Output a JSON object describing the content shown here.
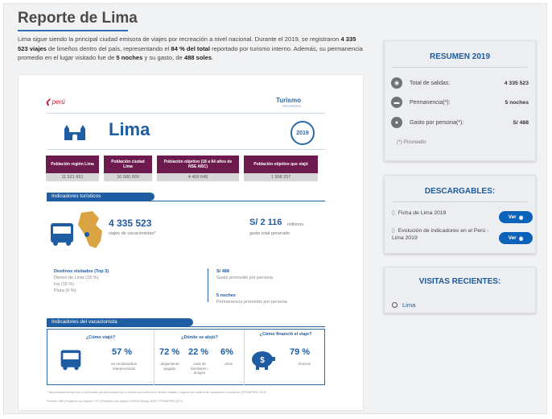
{
  "header": {
    "title": "Reporte de Lima"
  },
  "intro": {
    "p1": "Lima sigue siendo la principal ciudad emisora de viajes por recreación a nivel nacional.  Durante el 2019, se registraron ",
    "b1": "4 335 523 viajes",
    "p2": " de limeños dentro del país, representando el ",
    "b2": "84 % del total",
    "p3": " reportado por turismo interno. Además, su permanencia promedio en el lugar visitado fue de ",
    "b3": "5 noches",
    "p4": " y su gasto, de ",
    "b4": "488 soles",
    "p5": "."
  },
  "document": {
    "logo_peru": "perú",
    "logo_turismo": "Turismo",
    "logo_turismo_sub": "PROMPERÚ",
    "city": "Lima",
    "stamp": "2019",
    "population": [
      {
        "label": "Población región Lima",
        "value": "11 521 651"
      },
      {
        "label": "Población ciudad Lima",
        "value": "10 580 900"
      },
      {
        "label": "Población objetivo (18 a 64 años de NSE ABC)",
        "value": "4 400 649"
      },
      {
        "label": "Población objetivo que viajó",
        "value": "1 308 207"
      }
    ],
    "indicators_tab": "Indicadores turísticos",
    "trips_value": "4 335 523",
    "trips_label": "viajes de vacacionistas*",
    "spend_value": "S/ 2 116",
    "spend_unit": "millones",
    "spend_label": "gasto total generado",
    "top3_title": "Destinos visitados (Top 3)",
    "top3": [
      "Dentro de Lima (33 %)",
      "Ica (15 %)",
      "Piura (6 %)"
    ],
    "avg_spend_value": "S/ 488",
    "avg_spend_label": "Gasto promedio por persona",
    "nights_value": "5 noches",
    "nights_label": "Permanencia promedio por persona",
    "traveler_tab": "Indicadores del vacacionista",
    "how_title": "¿Cómo viajó?",
    "how_pct": "57 %",
    "how_label": "en ómnibus/bus interprovincial",
    "where_title": "¿Dónde se alojó?",
    "where_items": [
      {
        "pct": "72 %",
        "label": "alojamiento pagado"
      },
      {
        "pct": "22 %",
        "label": "casa de familiares / amigos"
      },
      {
        "pct": "6%",
        "label": "otros"
      }
    ],
    "fund_title": "¿Cómo financió el viaje?",
    "fund_pct": "79 %",
    "fund_label": "Ahorros",
    "footnote_1": "* Vacacionistas incluye solo a los turistas que pernoctaron por lo menos una noche en el destino visitado y viajaron por motivos de vacaciones o recreación (PROMPERÚ 2019)",
    "footnote_2": "Fuentes: INEI (Población por región) / CPI (Población por ciudad) / APEIM (Rango NSE) / PROMPERÚ (ETI)"
  },
  "summary": {
    "title": "RESUMEN 2019",
    "rows": [
      {
        "icon": "globe-icon",
        "label": "Total de salidas:",
        "value": "4 335 523"
      },
      {
        "icon": "bed-icon",
        "label": "Permanencia(*):",
        "value": "5 noches"
      },
      {
        "icon": "money-bag-icon",
        "label": "Gasto por persona(*):",
        "value": "S/ 488"
      }
    ],
    "note": "(*) Promedio"
  },
  "downloads": {
    "title": "DESCARGABLES:",
    "items": [
      {
        "label": "Ficha de Lima 2019",
        "button": "Ver"
      },
      {
        "label": "Evolución de indicadores en el Perú - Lima 2019",
        "button": "Ver"
      }
    ]
  },
  "recent": {
    "title": "VISITAS RECIENTES:",
    "items": [
      "Lima"
    ]
  },
  "colors": {
    "accent_blue": "#1f5da3",
    "button_blue": "#0b63b9",
    "header_maroon": "#6d1b4e"
  }
}
